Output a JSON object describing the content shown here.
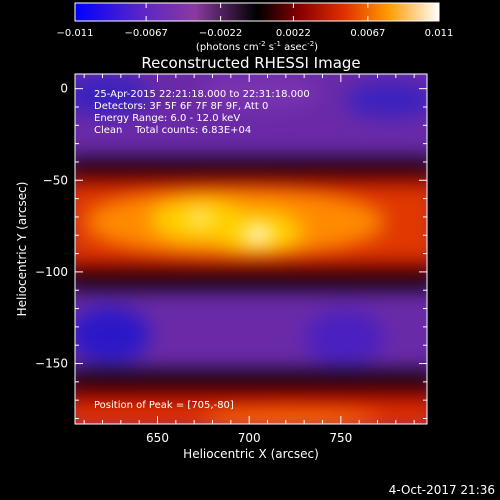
{
  "colorbar": {
    "ticks": [
      "-0.011",
      "-0.0067",
      "-0.0022",
      "0.0022",
      "0.0067",
      "0.011"
    ],
    "min": -0.011,
    "max": 0.011,
    "units_prefix": "(photons cm",
    "units_exp1": "-2",
    "units_mid": " s",
    "units_exp2": "-1",
    "units_mid2": " asec",
    "units_exp3": "-2",
    "units_suffix": ")"
  },
  "footer_date": "4-Oct-2017 21:36",
  "chart_data": {
    "type": "heatmap",
    "title": "Reconstructed RHESSI Image",
    "xlabel": "Heliocentric X (arcsec)",
    "ylabel": "Heliocentric Y (arcsec)",
    "xlim": [
      605,
      797
    ],
    "ylim": [
      -183,
      8
    ],
    "x_ticks": [
      650,
      700,
      750
    ],
    "y_ticks": [
      0,
      -50,
      -100,
      -150
    ],
    "peak": {
      "x": 705,
      "y": -80
    },
    "annotations": [
      "25-Apr-2015 22:21:18.000 to 22:31:18.000",
      "Detectors: 3F 5F 6F 7F 8F 9F, Att 0",
      "Energy Range: 6.0 - 12.0 keV",
      "Clean    Total counts: 6.83E+04"
    ],
    "peak_label": "Position of Peak = [705,-80]",
    "color_stops": [
      {
        "v": 0.0,
        "color": "#0000ff"
      },
      {
        "v": 0.18,
        "color": "#5a25c8"
      },
      {
        "v": 0.33,
        "color": "#8a3aa0"
      },
      {
        "v": 0.5,
        "color": "#000000"
      },
      {
        "v": 0.62,
        "color": "#8a0000"
      },
      {
        "v": 0.74,
        "color": "#e03000"
      },
      {
        "v": 0.86,
        "color": "#ff9a00"
      },
      {
        "v": 1.0,
        "color": "#ffffff"
      }
    ]
  }
}
